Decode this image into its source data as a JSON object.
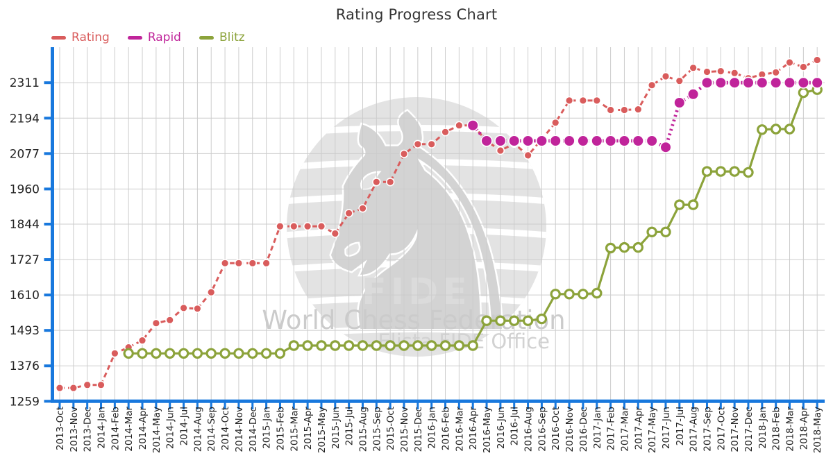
{
  "page": {
    "title": "Rating Progress Chart"
  },
  "legend": {
    "items": [
      {
        "label": "Rating",
        "color": "#d95c5c"
      },
      {
        "label": "Rapid",
        "color": "#c0249a"
      },
      {
        "label": "Blitz",
        "color": "#8ca33b"
      }
    ]
  },
  "watermark": {
    "knight_glyph": "♞",
    "brand": "FIDE",
    "org": "World Chess Federation",
    "office": "Elista FIDE Office"
  },
  "chart_data": {
    "type": "line",
    "title": "Rating Progress Chart",
    "xlabel": "",
    "ylabel": "",
    "grid": true,
    "legend_position": "top-left",
    "axis_color": "#1878dd",
    "grid_color": "#cccccc",
    "tick_label_color": "#222222",
    "ylim": [
      1259,
      2440
    ],
    "yticks": [
      2311,
      2194,
      2077,
      1960,
      1844,
      1727,
      1610,
      1493,
      1376,
      1259
    ],
    "categories": [
      "2013-Oct",
      "2013-Nov",
      "2013-Dec",
      "2014-Jan",
      "2014-Feb",
      "2014-Mar",
      "2014-Apr",
      "2014-May",
      "2014-Jun",
      "2014-Jul",
      "2014-Aug",
      "2014-Sep",
      "2014-Oct",
      "2014-Nov",
      "2014-Dec",
      "2015-Jan",
      "2015-Feb",
      "2015-Mar",
      "2015-Apr",
      "2015-May",
      "2015-Jun",
      "2015-Jul",
      "2015-Aug",
      "2015-Sep",
      "2015-Oct",
      "2015-Nov",
      "2015-Dec",
      "2016-Jan",
      "2016-Feb",
      "2016-Mar",
      "2016-Apr",
      "2016-May",
      "2016-Jun",
      "2016-Jul",
      "2016-Aug",
      "2016-Sep",
      "2016-Oct",
      "2016-Nov",
      "2016-Dec",
      "2017-Jan",
      "2017-Feb",
      "2017-Mar",
      "2017-Apr",
      "2017-May",
      "2017-Jun",
      "2017-Jul",
      "2017-Aug",
      "2017-Sep",
      "2017-Oct",
      "2017-Nov",
      "2017-Dec",
      "2018-Jan",
      "2018-Feb",
      "2018-Mar",
      "2018-Apr",
      "2018-May"
    ],
    "series": [
      {
        "name": "Rating",
        "color": "#d95c5c",
        "style": "dashed",
        "marker": "filled-circle",
        "start_index": 0,
        "values": [
          1303,
          1303,
          1313,
          1313,
          1417,
          1437,
          1460,
          1517,
          1527,
          1567,
          1565,
          1619,
          1715,
          1715,
          1715,
          1715,
          1837,
          1837,
          1837,
          1837,
          1813,
          1880,
          1896,
          1983,
          1983,
          2076,
          2108,
          2108,
          2148,
          2170,
          2170,
          2119,
          2087,
          2110,
          2071,
          2124,
          2179,
          2252,
          2252,
          2252,
          2221,
          2221,
          2223,
          2303,
          2332,
          2317,
          2360,
          2347,
          2349,
          2343,
          2326,
          2338,
          2345,
          2378,
          2363,
          2386
        ]
      },
      {
        "name": "Rapid",
        "color": "#c0249a",
        "style": "dotted-thick",
        "marker": "filled-circle-large",
        "start_index": 30,
        "values": [
          2170,
          2119,
          2119,
          2119,
          2119,
          2119,
          2119,
          2119,
          2119,
          2119,
          2119,
          2119,
          2119,
          2119,
          2098,
          2245,
          2273,
          2311,
          2311,
          2311,
          2311,
          2311,
          2311,
          2311,
          2311,
          2311
        ]
      },
      {
        "name": "Blitz",
        "color": "#8ca33b",
        "style": "solid",
        "marker": "open-circle",
        "start_index": 5,
        "values": [
          1417,
          1417,
          1417,
          1417,
          1417,
          1417,
          1417,
          1417,
          1417,
          1417,
          1417,
          1417,
          1443,
          1443,
          1443,
          1443,
          1443,
          1443,
          1443,
          1443,
          1443,
          1443,
          1443,
          1443,
          1443,
          1443,
          1525,
          1525,
          1525,
          1525,
          1531,
          1613,
          1613,
          1613,
          1616,
          1765,
          1767,
          1767,
          1818,
          1818,
          1908,
          1908,
          2018,
          2018,
          2018,
          2015,
          2156,
          2158,
          2158,
          2278,
          2288
        ]
      }
    ]
  }
}
